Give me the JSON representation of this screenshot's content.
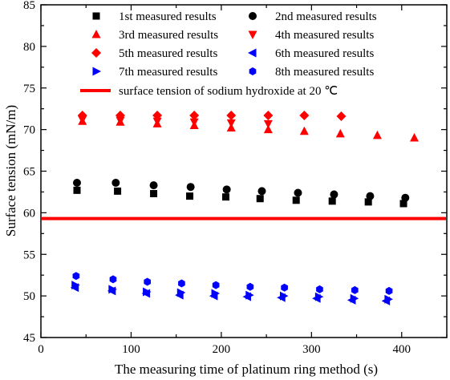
{
  "chart_data": {
    "type": "scatter",
    "xlabel": "The measuring time of platinum ring method (s)",
    "ylabel": "Surface tension (mN/m)",
    "xlim": [
      0,
      450
    ],
    "ylim": [
      45,
      85
    ],
    "xticks": [
      0,
      100,
      200,
      300,
      400
    ],
    "yticks": [
      45,
      50,
      55,
      60,
      65,
      70,
      75,
      80,
      85
    ],
    "legend_position": "top",
    "series": [
      {
        "name": "1st measured results",
        "marker": "square",
        "color": "#000000",
        "x": [
          40,
          85,
          125,
          165,
          205,
          243,
          283,
          323,
          363,
          402
        ],
        "y": [
          62.7,
          62.6,
          62.3,
          62.0,
          61.9,
          61.7,
          61.5,
          61.4,
          61.3,
          61.1
        ]
      },
      {
        "name": "2nd measured results",
        "marker": "circle",
        "color": "#000000",
        "x": [
          40,
          83,
          125,
          166,
          206,
          245,
          285,
          325,
          365,
          404
        ],
        "y": [
          63.6,
          63.6,
          63.3,
          63.1,
          62.8,
          62.6,
          62.4,
          62.2,
          62.0,
          61.8
        ]
      },
      {
        "name": "3rd measured results",
        "marker": "triangle-up",
        "color": "#ff0000",
        "x": [
          46,
          88,
          129,
          170,
          211,
          252,
          292,
          332,
          373,
          414
        ],
        "y": [
          71.0,
          70.9,
          70.7,
          70.5,
          70.2,
          70.0,
          69.8,
          69.5,
          69.3,
          69.0
        ]
      },
      {
        "name": "4th measured results",
        "marker": "triangle-down",
        "color": "#ff0000",
        "x": [
          46,
          88,
          129,
          170,
          211,
          252
        ],
        "y": [
          71.2,
          71.1,
          71.0,
          70.9,
          70.8,
          70.7
        ]
      },
      {
        "name": "5th measured results",
        "marker": "diamond",
        "color": "#ff0000",
        "x": [
          46,
          88,
          129,
          170,
          211,
          252,
          292,
          333
        ],
        "y": [
          71.7,
          71.7,
          71.7,
          71.7,
          71.7,
          71.7,
          71.7,
          71.6
        ]
      },
      {
        "name": "6th measured results",
        "marker": "triangle-left",
        "color": "#0000ff",
        "x": [
          38,
          79,
          117,
          154,
          192,
          229,
          267,
          306,
          345,
          383
        ],
        "y": [
          51.0,
          50.6,
          50.3,
          50.1,
          50.0,
          49.9,
          49.8,
          49.7,
          49.5,
          49.4
        ]
      },
      {
        "name": "7th measured results",
        "marker": "triangle-right",
        "color": "#0000ff",
        "x": [
          38,
          79,
          117,
          155,
          193,
          231,
          269,
          308,
          347,
          385
        ],
        "y": [
          51.3,
          50.8,
          50.5,
          50.4,
          50.3,
          50.1,
          50.0,
          49.9,
          49.7,
          49.6
        ]
      },
      {
        "name": "8th measured results",
        "marker": "hexagon",
        "color": "#0000ff",
        "x": [
          39,
          80,
          118,
          156,
          194,
          232,
          270,
          309,
          348,
          386
        ],
        "y": [
          52.4,
          52.0,
          51.7,
          51.5,
          51.3,
          51.1,
          51.0,
          50.8,
          50.7,
          50.6
        ]
      }
    ],
    "reference_line": {
      "name": "surface tension of sodium hydroxide at 20 ℃",
      "y": 59.3,
      "color": "#ff0000"
    }
  }
}
